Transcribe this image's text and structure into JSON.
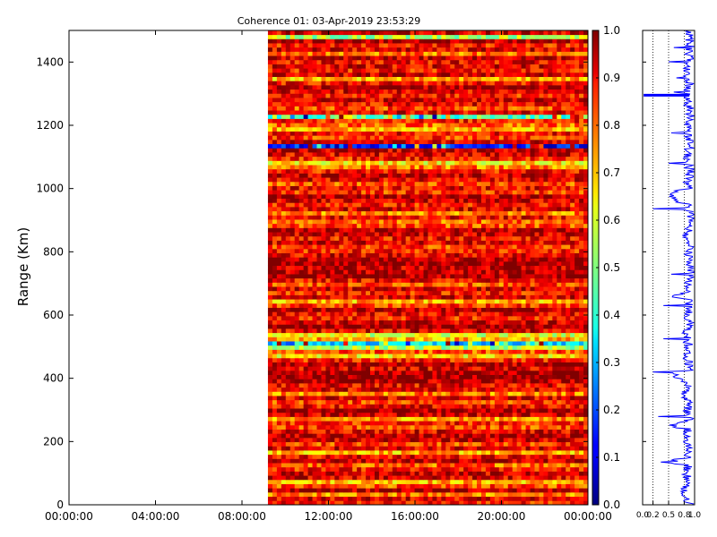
{
  "chart_data": [
    {
      "type": "heatmap",
      "title": "Coherence 01: 03-Apr-2019 23:53:29",
      "xlabel": "",
      "ylabel": "Range (Km)",
      "x_tick_labels": [
        "00:00:00",
        "04:00:00",
        "08:00:00",
        "12:00:00",
        "16:00:00",
        "20:00:00",
        "00:00:00"
      ],
      "x_hours": [
        0,
        4,
        8,
        12,
        16,
        20,
        24
      ],
      "xlim_hours": [
        0,
        24
      ],
      "data_start_hours": 9.2,
      "y_ticks": [
        0,
        200,
        400,
        600,
        800,
        1000,
        1200,
        1400
      ],
      "ylim": [
        0,
        1500
      ],
      "colormap": "jet",
      "band_color_values": [
        0.85,
        0.9,
        0.75,
        0.95,
        0.8,
        0.7,
        0.9,
        0.92,
        0.85,
        0.78,
        0.95,
        0.88,
        0.7,
        0.9,
        0.82,
        0.92,
        0.95,
        0.9,
        0.8,
        0.85,
        0.72,
        0.93,
        0.97,
        0.88,
        0.82,
        0.9,
        0.75,
        0.9,
        0.88,
        0.95,
        0.98,
        0.97,
        0.9,
        0.95,
        0.85,
        0.65,
        0.8,
        0.55,
        0.35,
        0.7,
        0.6,
        0.9,
        0.98,
        0.92,
        0.85,
        0.88,
        0.95,
        0.82,
        0.7,
        0.9,
        0.85,
        0.92,
        0.8,
        0.88,
        0.97,
        0.95,
        0.93,
        0.98,
        0.96,
        0.9,
        0.85,
        0.82,
        0.9,
        0.87,
        0.92,
        0.95,
        0.8,
        0.78,
        0.88,
        0.75,
        0.9,
        0.85,
        0.92,
        0.95,
        0.83,
        0.88,
        0.8,
        0.9,
        0.92,
        0.86,
        0.75,
        0.65,
        0.85,
        0.9,
        0.93,
        0.15,
        0.9,
        0.82,
        0.88,
        0.7,
        0.78,
        0.85,
        0.45,
        0.9,
        0.8,
        0.88,
        0.92,
        0.85,
        0.9,
        0.95,
        0.87,
        0.7,
        0.92,
        0.85,
        0.9,
        0.88,
        0.93,
        0.75,
        0.9,
        0.85,
        0.95,
        0.55,
        0.92
      ]
    },
    {
      "type": "line",
      "title": "",
      "x_ticks": [
        0.0,
        0.2,
        0.5,
        0.8,
        1.0
      ],
      "x_tick_labels": [
        "0.0",
        "0.2",
        "0.5",
        "0.8",
        "1.0"
      ],
      "xlim": [
        0,
        1
      ],
      "ylim": [
        0,
        1500
      ],
      "y_ticks": [
        0,
        200,
        400,
        600,
        800,
        1000,
        1200,
        1400
      ],
      "reference_lines_x": [
        0.2,
        0.5,
        0.8
      ],
      "line_color": "#0000ff",
      "range_km": [
        0,
        25,
        50,
        75,
        100,
        125,
        135,
        150,
        175,
        200,
        225,
        240,
        250,
        265,
        275,
        300,
        325,
        350,
        375,
        400,
        415,
        425,
        450,
        475,
        500,
        525,
        550,
        575,
        600,
        625,
        650,
        660,
        675,
        700,
        725,
        750,
        775,
        800,
        825,
        850,
        875,
        900,
        925,
        950,
        975,
        1000,
        1025,
        1050,
        1075,
        1100,
        1125,
        1150,
        1175,
        1200,
        1225,
        1250,
        1275,
        1300,
        1325,
        1350,
        1375,
        1400,
        1425,
        1450,
        1475,
        1500
      ],
      "mean_coherence": [
        0.9,
        0.85,
        0.75,
        0.92,
        0.8,
        0.9,
        0.35,
        0.88,
        0.9,
        0.82,
        0.85,
        0.88,
        0.4,
        0.9,
        0.92,
        0.85,
        0.88,
        0.82,
        0.9,
        0.78,
        0.2,
        0.9,
        0.88,
        0.82,
        0.9,
        0.85,
        0.82,
        0.9,
        0.85,
        0.9,
        0.88,
        0.55,
        0.92,
        0.85,
        0.95,
        0.92,
        0.88,
        0.9,
        0.92,
        0.85,
        0.88,
        0.95,
        0.9,
        0.88,
        0.2,
        0.9,
        0.85,
        0.92,
        0.88,
        0.85,
        0.9,
        0.92,
        0.88,
        0.85,
        0.92,
        0.9,
        0.85,
        0.82,
        0.9,
        0.88,
        0.85,
        0.9,
        0.88,
        0.92,
        0.9,
        0.85
      ],
      "dips": [
        {
          "range_km": 135,
          "value": 0.35
        },
        {
          "range_km": 280,
          "value": 0.3
        },
        {
          "range_km": 420,
          "value": 0.2
        },
        {
          "range_km": 525,
          "value": 0.4
        },
        {
          "range_km": 630,
          "value": 0.4
        },
        {
          "range_km": 730,
          "value": 0.55
        },
        {
          "range_km": 935,
          "value": 0.2
        },
        {
          "range_km": 1080,
          "value": 0.5
        },
        {
          "range_km": 1175,
          "value": 0.55
        },
        {
          "range_km": 1305,
          "value": 0.6
        },
        {
          "range_km": 1350,
          "value": 0.65
        },
        {
          "range_km": 1400,
          "value": 0.5
        },
        {
          "range_km": 1445,
          "value": 0.6
        }
      ],
      "thick_dip": {
        "range_km": 1295,
        "value": 0.02
      }
    },
    {
      "type": "colorbar",
      "ticks": [
        0.0,
        0.1,
        0.2,
        0.3,
        0.4,
        0.5,
        0.6,
        0.7,
        0.8,
        0.9,
        1.0
      ],
      "tick_labels": [
        "0.0",
        "0.1",
        "0.2",
        "0.3",
        "0.4",
        "0.5",
        "0.6",
        "0.7",
        "0.8",
        "0.9",
        "1.0"
      ],
      "range": [
        0,
        1
      ],
      "colormap": "jet"
    }
  ]
}
